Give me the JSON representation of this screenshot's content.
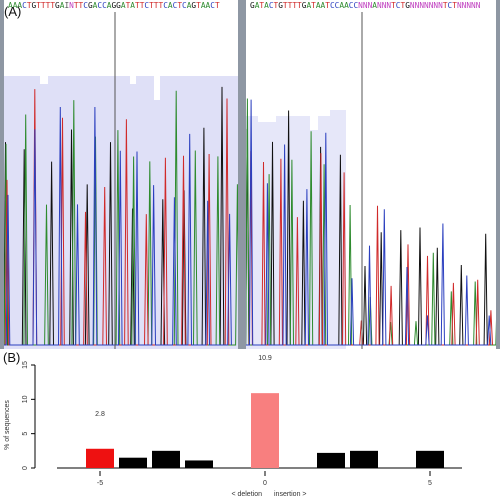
{
  "panel_a": {
    "label": "(A)",
    "left_trace": {
      "sequence": "AAACTGTTTTGAINTTCGACCAGGATATTCTTTCACTCAGTAACT",
      "quality_fill": "#dfe0f7"
    },
    "right_trace": {
      "seq_clean": "GATACTGTTTTGATAATCCAACC",
      "seq_mixed": "NNNANNNTCTGNNNNNNNTCTNNNNN",
      "quality_fill": "#e6e7f9"
    },
    "base_colors": {
      "A": "#2e8b2e",
      "C": "#2b3fbf",
      "G": "#111111",
      "T": "#d02a2a",
      "N": "#c040c0"
    }
  },
  "panel_b": {
    "label": "(B)",
    "ylabel": "% of sequences",
    "xlabel_left": "< deletion",
    "xlabel_right": "insertion >",
    "highlight_labels": [
      "2.8",
      "10.9"
    ]
  },
  "chart_data": {
    "type": "bar",
    "title": "",
    "xlabel": "< deletion   insertion >",
    "ylabel": "% of sequences",
    "xlim": [
      -7,
      6
    ],
    "ylim": [
      0,
      15
    ],
    "xticks": [
      -5,
      0,
      5
    ],
    "yticks": [
      0,
      5,
      10,
      15
    ],
    "x": [
      -5,
      -4,
      -3,
      -2,
      0,
      2,
      3,
      5
    ],
    "values": [
      2.8,
      1.5,
      2.5,
      1.1,
      10.9,
      2.2,
      2.5,
      2.5
    ],
    "colors": [
      "#ee1111",
      "#000000",
      "#000000",
      "#000000",
      "#f87f7f",
      "#000000",
      "#000000",
      "#000000"
    ],
    "data_labels": {
      "-5": "2.8",
      "0": "10.9"
    },
    "grid": false,
    "legend": "none"
  }
}
